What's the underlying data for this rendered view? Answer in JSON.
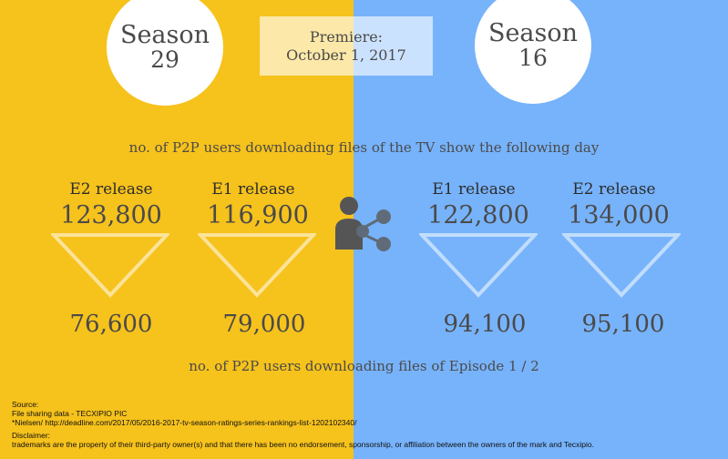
{
  "season_left": {
    "line1": "Season",
    "line2": "29"
  },
  "season_right": {
    "line1": "Season",
    "line2": "16"
  },
  "premiere": {
    "line1": "Premiere:",
    "line2": "October 1, 2017"
  },
  "subtitle_top": "no. of P2P users downloading files of the TV show the following day",
  "subtitle_bottom": "no. of P2P users downloading files of Episode 1 / 2",
  "columns": [
    {
      "label": "E2 release",
      "top_value": "123,800",
      "bottom_value": "76,600"
    },
    {
      "label": "E1 release",
      "top_value": "116,900",
      "bottom_value": "79,000"
    },
    {
      "label": "E1 release",
      "top_value": "122,800",
      "bottom_value": "94,100"
    },
    {
      "label": "E2 release",
      "top_value": "134,000",
      "bottom_value": "95,100"
    }
  ],
  "icons": {
    "center": "user-share-icon",
    "triangle": "down-triangle-icon"
  },
  "colors": {
    "left_bg": "#f6c21c",
    "right_bg": "#77b3fb",
    "text": "#4a4a4a",
    "icon": "#555555"
  },
  "footer": {
    "source_label": "Source:",
    "source_line1": "File sharing data - TECXIPIO PIC",
    "source_line2": "*Nielsen/ http://deadline.com/2017/05/2016-2017-tv-season-ratings-series-rankings-list-1202102340/",
    "disclaimer_label": "Disclaimer:",
    "disclaimer_text": "trademarks are the property of their third-party owner(s) and that there has been no endorsement, sponsorship, or affiliation between the owners of the mark and Tecxipio."
  }
}
